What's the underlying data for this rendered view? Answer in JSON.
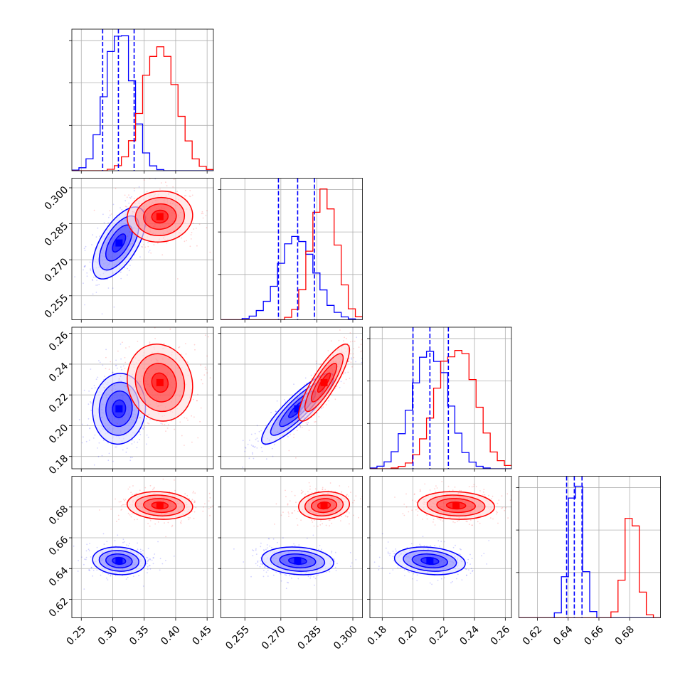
{
  "chart_data": {
    "type": "corner",
    "title": "",
    "grid": true,
    "series": [
      {
        "color": "#0000ff",
        "means": [
          0.31,
          0.277,
          0.211,
          0.645
        ],
        "stds": [
          0.021,
          0.0075,
          0.0115,
          0.0045
        ],
        "quantiles": [
          [
            0.284,
            0.309,
            0.334
          ],
          [
            0.269,
            0.277,
            0.284
          ],
          [
            0.2,
            0.211,
            0.223
          ],
          [
            0.639,
            0.644,
            0.649
          ]
        ],
        "hist_peak_fraction": [
          1.0,
          0.58,
          0.88,
          1.0
        ]
      },
      {
        "color": "#ff0000",
        "means": [
          0.375,
          0.288,
          0.228,
          0.681
        ],
        "stds": [
          0.026,
          0.0053,
          0.0125,
          0.0045
        ],
        "hist_peak_fraction": [
          0.92,
          0.9,
          0.87,
          0.76
        ]
      }
    ],
    "correlations": {
      "blue": {
        "0-1": 0.62,
        "0-2": 0.05,
        "1-2": 0.88,
        "0-3": -0.1,
        "1-3": -0.15,
        "2-3": -0.2
      },
      "red": {
        "0-1": 0.05,
        "0-2": -0.1,
        "1-2": 0.85,
        "0-3": -0.1,
        "1-3": 0.1,
        "2-3": -0.1
      }
    },
    "axes": [
      {
        "range": [
          0.235,
          0.46
        ],
        "ticks": [
          0.25,
          0.3,
          0.35,
          0.4,
          0.45
        ],
        "tick_labels": [
          "0.25",
          "0.30",
          "0.35",
          "0.40",
          "0.45"
        ]
      },
      {
        "range": [
          0.245,
          0.304
        ],
        "ticks": [
          0.255,
          0.27,
          0.285,
          0.3
        ],
        "tick_labels": [
          "0.255",
          "0.270",
          "0.285",
          "0.300"
        ]
      },
      {
        "range": [
          0.172,
          0.264
        ],
        "ticks": [
          0.18,
          0.2,
          0.22,
          0.24,
          0.26
        ],
        "tick_labels": [
          "0.18",
          "0.20",
          "0.22",
          "0.24",
          "0.26"
        ]
      },
      {
        "range": [
          0.608,
          0.7
        ],
        "ticks": [
          0.62,
          0.64,
          0.66,
          0.68
        ],
        "tick_labels": [
          "0.62",
          "0.64",
          "0.66",
          "0.68"
        ]
      }
    ]
  }
}
